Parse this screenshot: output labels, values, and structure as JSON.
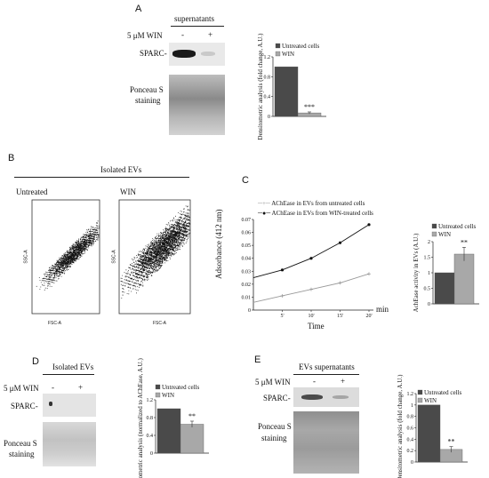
{
  "panels": {
    "A": {
      "label": "A",
      "header": "supernatants",
      "treatment": "5 μM WIN",
      "lane_minus": "-",
      "lane_plus": "+",
      "row1": "SPARC-",
      "row2a": "Ponceau S",
      "row2b": "staining"
    },
    "B": {
      "label": "B",
      "header": "Isolated EVs",
      "left_title": "Untreated",
      "right_title": "WIN",
      "x_axis": "FSC-A",
      "y_axis": "SSC-A"
    },
    "C": {
      "label": "C",
      "xlabel": "Time",
      "xunit": "min",
      "ylabel": "Adsorbance (412 nm)"
    },
    "D": {
      "label": "D",
      "header": "Isolated EVs",
      "treatment": "5 μM WIN",
      "lane_minus": "-",
      "lane_plus": "+",
      "row1": "SPARC-",
      "row2a": "Ponceau S",
      "row2b": "staining"
    },
    "E": {
      "label": "E",
      "header": "EVs supernatants",
      "treatment": "5 μM WIN",
      "lane_minus": "-",
      "lane_plus": "+",
      "row1": "SPARC-",
      "row2a": "Ponceau S",
      "row2b": "staining"
    }
  },
  "colors": {
    "untreated": "#4a4a4a",
    "win": "#a8a8a8",
    "line_win": "#111111",
    "line_untreated": "#9a9a9a"
  },
  "chart_data": [
    {
      "id": "A",
      "type": "bar",
      "categories": [
        "Untreated cells",
        "WIN"
      ],
      "values": [
        1.0,
        0.07
      ],
      "errors": [
        0,
        0.02
      ],
      "significance": [
        "",
        "***"
      ],
      "legend": [
        "Untreated cells",
        "WIN"
      ],
      "ylabel": "Densitometric analysis (fold change, A.U.)",
      "ylim": [
        0,
        1.2
      ],
      "yticks": [
        "0",
        "0.4",
        "0.8",
        "1.2"
      ]
    },
    {
      "id": "C-line",
      "type": "line",
      "x": [
        "5'",
        "10'",
        "15'",
        "20'"
      ],
      "xaxis_min_label": "",
      "series": [
        {
          "name": "AChEase in EVs from untreated cells",
          "values": [
            0.011,
            0.016,
            0.021,
            0.028
          ]
        },
        {
          "name": "AChEase in EVs from WIN-treated cells",
          "values": [
            0.031,
            0.04,
            0.052,
            0.066
          ]
        }
      ],
      "start_values": [
        0.006,
        0.025
      ],
      "ylabel": "Adsorbance (412 nm)",
      "xlabel": "Time",
      "ylim": [
        0,
        0.07
      ],
      "yticks": [
        "0",
        "0.01",
        "0.02",
        "0.03",
        "0.04",
        "0.05",
        "0.06",
        "0.07"
      ]
    },
    {
      "id": "C-bar",
      "type": "bar",
      "categories": [
        "Untreated cells",
        "WIN"
      ],
      "values": [
        1.0,
        1.6
      ],
      "errors": [
        0,
        0.22
      ],
      "significance": [
        "",
        "**"
      ],
      "legend": [
        "Untreated cells",
        "WIN"
      ],
      "ylabel": "AchEase activity in EVs (A.U.)",
      "ylim": [
        0,
        2
      ],
      "yticks": [
        "0",
        "0.5",
        "1",
        "1.5",
        "2"
      ]
    },
    {
      "id": "D",
      "type": "bar",
      "categories": [
        "Untreated cells",
        "WIN"
      ],
      "values": [
        1.0,
        0.65
      ],
      "errors": [
        0,
        0.07
      ],
      "significance": [
        "",
        "**"
      ],
      "legend": [
        "Untreated cells",
        "WIN"
      ],
      "ylabel": "Densitometric analysis (normalized to AChEase, A.U.)",
      "ylim": [
        0,
        1.2
      ],
      "yticks": [
        "0",
        "0.4",
        "0.8",
        "1.2"
      ]
    },
    {
      "id": "E",
      "type": "bar",
      "categories": [
        "Untreated cells",
        "WIN"
      ],
      "values": [
        1.0,
        0.22
      ],
      "errors": [
        0,
        0.05
      ],
      "significance": [
        "",
        "**"
      ],
      "legend": [
        "Untreated cells",
        "WIN"
      ],
      "ylabel": "Densitometric analysis (fold change, A.U.)",
      "ylim": [
        0,
        1.2
      ],
      "yticks": [
        "0",
        "0.2",
        "0.4",
        "0.6",
        "0.8",
        "1",
        "1.2"
      ]
    }
  ]
}
